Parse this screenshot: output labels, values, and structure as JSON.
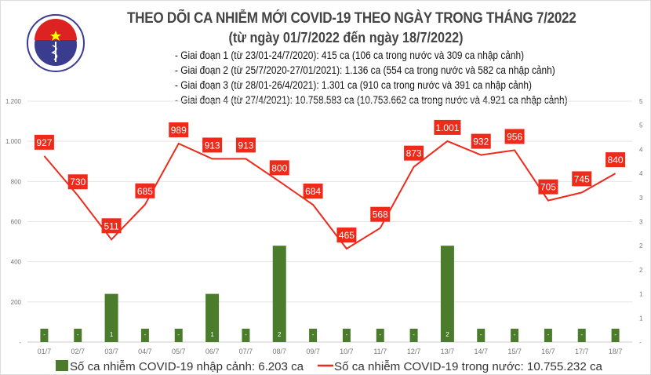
{
  "header": {
    "title": "THEO DÕI CA NHIỄM MỚI COVID-19 THEO NGÀY TRONG THÁNG 7/2022",
    "subtitle": "(từ ngày 01/7/2022 đến ngày 18/7/2022)",
    "notes": [
      "- Giai đoạn 1 (từ 23/01-24/7/2020): 415 ca (106 ca trong nước và 309 ca nhập cảnh)",
      "- Giai đoạn 2 (từ 25/7/2020-27/01/2021): 1.136 ca (554 ca trong nước và 582 ca nhập cảnh)",
      "- Giai đoạn 3 (từ 28/01-26/4/2021): 1.301 ca (910 ca trong nước và 391 ca nhập cảnh)",
      "- Giai đoạn 4 (từ 27/4/2021): 10.758.583 ca (10.753.662 ca trong nước và 4.921 ca nhập cảnh)"
    ],
    "logo_text": [
      "BỘ Y TẾ",
      "MINISTRY OF HEALTH"
    ]
  },
  "chart_data": {
    "type": "bar+line",
    "categories": [
      "01/7",
      "02/7",
      "03/7",
      "04/7",
      "05/7",
      "06/7",
      "07/7",
      "08/7",
      "09/7",
      "10/7",
      "11/7",
      "12/7",
      "13/7",
      "14/7",
      "15/7",
      "16/7",
      "17/7",
      "18/7"
    ],
    "series": [
      {
        "name": "Số ca nhiễm COVID-19 nhập cảnh: 6.203 ca",
        "type": "bar",
        "axis": "right",
        "color": "#4a7c2c",
        "values": [
          0,
          0,
          1,
          0,
          0,
          1,
          0,
          2,
          0,
          0,
          0,
          0,
          2,
          0,
          0,
          0,
          0,
          0
        ],
        "labels": [
          "-",
          "-",
          "1",
          "-",
          "-",
          "1",
          "-",
          "2",
          "-",
          "-",
          "-",
          "-",
          "2",
          "-",
          "-",
          "-",
          "-",
          "-"
        ]
      },
      {
        "name": "Số ca nhiễm COVID-19 trong nước: 10.755.232 ca",
        "type": "line",
        "axis": "left",
        "color": "#ee2a1b",
        "values": [
          927,
          730,
          511,
          685,
          989,
          913,
          913,
          800,
          684,
          465,
          568,
          873,
          1001,
          932,
          956,
          705,
          745,
          840
        ],
        "labels": [
          "927",
          "730",
          "511",
          "685",
          "989",
          "913",
          "913",
          "800",
          "684",
          "465",
          "568",
          "873",
          "1.001",
          "932",
          "956",
          "705",
          "745",
          "840"
        ]
      }
    ],
    "left_axis": {
      "ylim": [
        0,
        1200
      ],
      "ticks": [
        "-",
        "200",
        "400",
        "600",
        "800",
        "1.000",
        "1.200"
      ]
    },
    "right_axis": {
      "ylim": [
        0,
        5
      ],
      "ticks": [
        "-",
        "1",
        "1",
        "2",
        "2",
        "3",
        "3",
        "4",
        "4",
        "5",
        "5"
      ]
    },
    "grid": true,
    "legend": "bottom"
  }
}
